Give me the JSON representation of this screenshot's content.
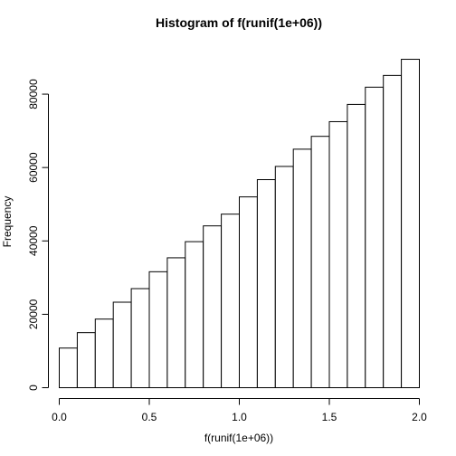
{
  "chart_data": {
    "type": "bar",
    "title": "Histogram of f(runif(1e+06))",
    "xlabel": "f(runif(1e+06))",
    "ylabel": "Frequency",
    "bin_edges": [
      0.0,
      0.1,
      0.2,
      0.3,
      0.4,
      0.5,
      0.6,
      0.7,
      0.8,
      0.9,
      1.0,
      1.1,
      1.2,
      1.3,
      1.4,
      1.5,
      1.6,
      1.7,
      1.8,
      1.9,
      2.0
    ],
    "values": [
      10800,
      15000,
      18700,
      23300,
      27000,
      31600,
      35400,
      39800,
      44100,
      47300,
      52000,
      56700,
      60300,
      65000,
      68500,
      72500,
      77200,
      81900,
      85100,
      89500
    ],
    "xlim": [
      0.0,
      2.0
    ],
    "ylim": [
      0,
      90000
    ],
    "x_ticks": [
      0.0,
      0.5,
      1.0,
      1.5,
      2.0
    ],
    "x_tick_labels": [
      "0.0",
      "0.5",
      "1.0",
      "1.5",
      "2.0"
    ],
    "y_ticks": [
      0,
      20000,
      40000,
      60000,
      80000
    ],
    "y_tick_labels": [
      "0",
      "20000",
      "40000",
      "60000",
      "80000"
    ],
    "grid": false,
    "colors": {
      "bar_fill": "#ffffff",
      "bar_stroke": "#000000"
    }
  }
}
